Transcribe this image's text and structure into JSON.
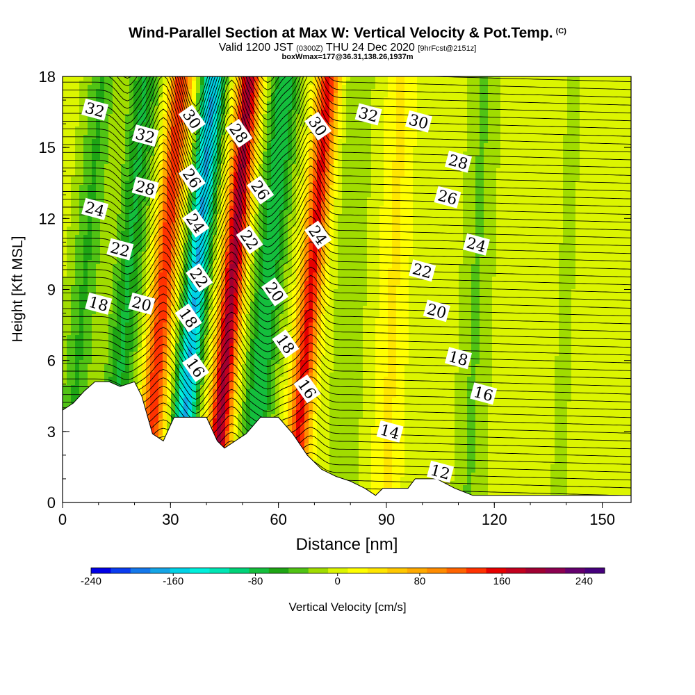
{
  "header": {
    "title": "Wind-Parallel Section at Max W: Vertical Velocity & Pot.Temp.",
    "copyright_mark": "(C)",
    "valid_prefix": "Valid 1200 JST",
    "valid_utc": "(0300Z)",
    "valid_date": "THU 24 Dec 2020",
    "forecast_note": "[9hrFcst@2151z]",
    "box_info": "boxWmax=177@36.31,138.26,1937m"
  },
  "chart_data": {
    "type": "heatmap",
    "title": "Wind-Parallel Section at Max W: Vertical Velocity & Pot.Temp.",
    "xlabel": "Distance [nm]",
    "ylabel": "Height [Kft MSL]",
    "xlim": [
      0,
      158
    ],
    "ylim": [
      0,
      18
    ],
    "x_ticks": [
      0,
      30,
      60,
      90,
      120,
      150
    ],
    "x_tick_labels": [
      "0",
      "30",
      "60",
      "90",
      "120",
      "150"
    ],
    "y_ticks": [
      0,
      3,
      6,
      9,
      12,
      15,
      18
    ],
    "y_tick_labels": [
      "0",
      "3",
      "6",
      "9",
      "12",
      "15",
      "18"
    ],
    "fill_variable": "Vertical Velocity [cm/s]",
    "colorbar": {
      "label": "Vertical Velocity [cm/s]",
      "levels": [
        -240,
        -220,
        -200,
        -180,
        -160,
        -140,
        -120,
        -100,
        -80,
        -60,
        -40,
        -20,
        0,
        20,
        40,
        60,
        80,
        100,
        120,
        140,
        160,
        180,
        200,
        220,
        240,
        260
      ],
      "tick_values": [
        -240,
        -160,
        -80,
        0,
        80,
        160,
        240
      ],
      "tick_labels": [
        "-240",
        "-160",
        "-80",
        "0",
        "80",
        "160",
        "240"
      ],
      "colors": [
        "#0000e6",
        "#0a3cf0",
        "#1478eb",
        "#14a5e6",
        "#00d2e6",
        "#00f0dc",
        "#00e6b4",
        "#00d278",
        "#14be3c",
        "#1ea514",
        "#50c314",
        "#a0dc00",
        "#dcf500",
        "#ffff00",
        "#ffe600",
        "#ffc800",
        "#ffaa00",
        "#ff8c00",
        "#ff6400",
        "#ff3200",
        "#e60000",
        "#c3001e",
        "#a00032",
        "#8c0050",
        "#64006e",
        "#46007d"
      ]
    },
    "vertical_velocity_bands": [
      {
        "x": 6,
        "w_cms": -50
      },
      {
        "x": 18,
        "w_cms": -70
      },
      {
        "x": 28,
        "w_cms": 150
      },
      {
        "x": 37,
        "w_cms": -170
      },
      {
        "x": 47,
        "w_cms": 200
      },
      {
        "x": 57,
        "w_cms": -85
      },
      {
        "x": 69,
        "w_cms": 160
      },
      {
        "x": 80,
        "w_cms": -25
      },
      {
        "x": 92,
        "w_cms": 35
      },
      {
        "x": 104,
        "w_cms": 10
      },
      {
        "x": 115,
        "w_cms": -30
      },
      {
        "x": 140,
        "w_cms": -10
      },
      {
        "x": 152,
        "w_cms": 5
      }
    ],
    "contour_variable": "Potential temperature",
    "contour_levels": [
      12,
      14,
      16,
      18,
      20,
      22,
      24,
      26,
      28,
      30,
      32
    ],
    "contour_labels": [
      {
        "text": "32",
        "x": 9,
        "y": 16.6
      },
      {
        "text": "32",
        "x": 23,
        "y": 15.5
      },
      {
        "text": "28",
        "x": 23,
        "y": 13.3
      },
      {
        "text": "24",
        "x": 9,
        "y": 12.4
      },
      {
        "text": "22",
        "x": 16,
        "y": 10.7
      },
      {
        "text": "18",
        "x": 10,
        "y": 8.4
      },
      {
        "text": "20",
        "x": 22,
        "y": 8.4
      },
      {
        "text": "30",
        "x": 36,
        "y": 16.2
      },
      {
        "text": "26",
        "x": 36,
        "y": 13.7
      },
      {
        "text": "24",
        "x": 37,
        "y": 11.8
      },
      {
        "text": "22",
        "x": 38,
        "y": 9.5
      },
      {
        "text": "18",
        "x": 35,
        "y": 7.8
      },
      {
        "text": "16",
        "x": 37,
        "y": 5.7
      },
      {
        "text": "28",
        "x": 49,
        "y": 15.6
      },
      {
        "text": "26",
        "x": 55,
        "y": 13.2
      },
      {
        "text": "22",
        "x": 52,
        "y": 11.1
      },
      {
        "text": "20",
        "x": 59,
        "y": 8.9
      },
      {
        "text": "18",
        "x": 62,
        "y": 6.7
      },
      {
        "text": "16",
        "x": 68,
        "y": 4.8
      },
      {
        "text": "30",
        "x": 71,
        "y": 15.9
      },
      {
        "text": "24",
        "x": 71,
        "y": 11.3
      },
      {
        "text": "32",
        "x": 85,
        "y": 16.4
      },
      {
        "text": "30",
        "x": 99,
        "y": 16.1
      },
      {
        "text": "28",
        "x": 110,
        "y": 14.4
      },
      {
        "text": "26",
        "x": 107,
        "y": 12.9
      },
      {
        "text": "24",
        "x": 115,
        "y": 10.9
      },
      {
        "text": "22",
        "x": 100,
        "y": 9.8
      },
      {
        "text": "20",
        "x": 104,
        "y": 8.1
      },
      {
        "text": "18",
        "x": 110,
        "y": 6.1
      },
      {
        "text": "16",
        "x": 117,
        "y": 4.6
      },
      {
        "text": "14",
        "x": 91,
        "y": 3.0
      },
      {
        "text": "12",
        "x": 105,
        "y": 1.3
      }
    ],
    "terrain_height_kft": [
      {
        "x": 0,
        "h": 3.9
      },
      {
        "x": 3,
        "h": 4.2
      },
      {
        "x": 6,
        "h": 4.7
      },
      {
        "x": 9,
        "h": 5.1
      },
      {
        "x": 13,
        "h": 5.1
      },
      {
        "x": 16,
        "h": 4.9
      },
      {
        "x": 20,
        "h": 5.1
      },
      {
        "x": 22,
        "h": 4.5
      },
      {
        "x": 25,
        "h": 2.9
      },
      {
        "x": 28,
        "h": 2.6
      },
      {
        "x": 31,
        "h": 3.6
      },
      {
        "x": 37,
        "h": 3.6
      },
      {
        "x": 40,
        "h": 3.6
      },
      {
        "x": 43,
        "h": 2.6
      },
      {
        "x": 45,
        "h": 2.3
      },
      {
        "x": 48,
        "h": 2.6
      },
      {
        "x": 51,
        "h": 2.9
      },
      {
        "x": 55,
        "h": 3.6
      },
      {
        "x": 60,
        "h": 3.6
      },
      {
        "x": 64,
        "h": 2.9
      },
      {
        "x": 68,
        "h": 2.0
      },
      {
        "x": 72,
        "h": 1.4
      },
      {
        "x": 76,
        "h": 1.1
      },
      {
        "x": 80,
        "h": 0.9
      },
      {
        "x": 84,
        "h": 0.6
      },
      {
        "x": 87,
        "h": 0.3
      },
      {
        "x": 89,
        "h": 0.6
      },
      {
        "x": 96,
        "h": 0.6
      },
      {
        "x": 98,
        "h": 1.0
      },
      {
        "x": 104,
        "h": 1.0
      },
      {
        "x": 109,
        "h": 0.6
      },
      {
        "x": 114,
        "h": 0.3
      },
      {
        "x": 120,
        "h": 0.3
      },
      {
        "x": 158,
        "h": 0.3
      }
    ]
  }
}
